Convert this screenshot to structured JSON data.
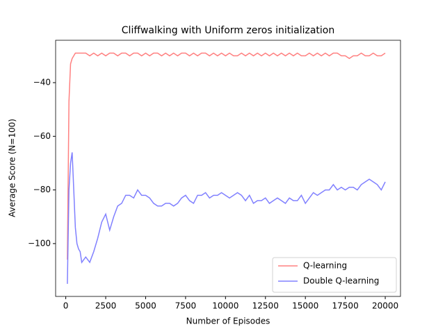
{
  "chart_data": {
    "type": "line",
    "title": "Cliffwalking with Uniform zeros initialization",
    "xlabel": "Number of Episodes",
    "ylabel": "Average Score (N=100)",
    "x": [
      100,
      200,
      300,
      400,
      500,
      600,
      700,
      800,
      900,
      1000,
      1250,
      1500,
      1750,
      2000,
      2250,
      2500,
      2750,
      3000,
      3250,
      3500,
      3750,
      4000,
      4250,
      4500,
      4750,
      5000,
      5250,
      5500,
      5750,
      6000,
      6250,
      6500,
      6750,
      7000,
      7250,
      7500,
      7750,
      8000,
      8250,
      8500,
      8750,
      9000,
      9250,
      9500,
      9750,
      10000,
      10250,
      10500,
      10750,
      11000,
      11250,
      11500,
      11750,
      12000,
      12250,
      12500,
      12750,
      13000,
      13250,
      13500,
      13750,
      14000,
      14250,
      14500,
      14750,
      15000,
      15250,
      15500,
      15750,
      16000,
      16250,
      16500,
      16750,
      17000,
      17250,
      17500,
      17750,
      18000,
      18250,
      18500,
      18750,
      19000,
      19250,
      19500,
      19750,
      20000
    ],
    "series": [
      {
        "name": "Q-learning",
        "color": "#ff8080",
        "values": [
          -106,
          -47,
          -33,
          -31,
          -30,
          -29,
          -29,
          -29,
          -29,
          -29,
          -29,
          -30,
          -29,
          -30,
          -29,
          -30,
          -29,
          -29,
          -30,
          -29,
          -29,
          -30,
          -29,
          -29,
          -30,
          -29,
          -30,
          -29,
          -29,
          -30,
          -29,
          -30,
          -29,
          -30,
          -29,
          -29,
          -30,
          -29,
          -30,
          -29,
          -29,
          -30,
          -29,
          -30,
          -29,
          -30,
          -29,
          -30,
          -30,
          -29,
          -30,
          -29,
          -30,
          -29,
          -30,
          -29,
          -30,
          -29,
          -30,
          -29,
          -30,
          -29,
          -30,
          -29,
          -30,
          -30,
          -29,
          -30,
          -29,
          -30,
          -29,
          -30,
          -29,
          -29,
          -30,
          -30,
          -31,
          -30,
          -30,
          -29,
          -30,
          -30,
          -29,
          -30,
          -30,
          -29
        ]
      },
      {
        "name": "Double Q-learning",
        "color": "#8080ff",
        "values": [
          -115,
          -80,
          -70,
          -66,
          -80,
          -94,
          -100,
          -102,
          -103,
          -107,
          -105,
          -107,
          -103,
          -98,
          -92,
          -89,
          -95,
          -90,
          -86,
          -85,
          -82,
          -82,
          -83,
          -80,
          -82,
          -82,
          -83,
          -85,
          -86,
          -86,
          -85,
          -85,
          -86,
          -85,
          -83,
          -82,
          -84,
          -85,
          -82,
          -82,
          -81,
          -83,
          -82,
          -82,
          -81,
          -82,
          -83,
          -82,
          -81,
          -82,
          -84,
          -82,
          -85,
          -84,
          -84,
          -83,
          -85,
          -84,
          -83,
          -84,
          -85,
          -83,
          -84,
          -84,
          -82,
          -85,
          -83,
          -81,
          -82,
          -81,
          -80,
          -80,
          -78,
          -80,
          -79,
          -80,
          -79,
          -79,
          -80,
          -78,
          -77,
          -76,
          -77,
          -78,
          -80,
          -77
        ]
      }
    ],
    "xlim": [
      -635,
      20955
    ],
    "ylim": [
      -119.7,
      -24.2
    ],
    "xticks": [
      0,
      2500,
      5000,
      7500,
      10000,
      12500,
      15000,
      17500,
      20000
    ],
    "yticks": [
      {
        "value": -100,
        "label": "−100"
      },
      {
        "value": -80,
        "label": "−80"
      },
      {
        "value": -60,
        "label": "−60"
      },
      {
        "value": -40,
        "label": "−40"
      }
    ],
    "legend": "lower right"
  }
}
